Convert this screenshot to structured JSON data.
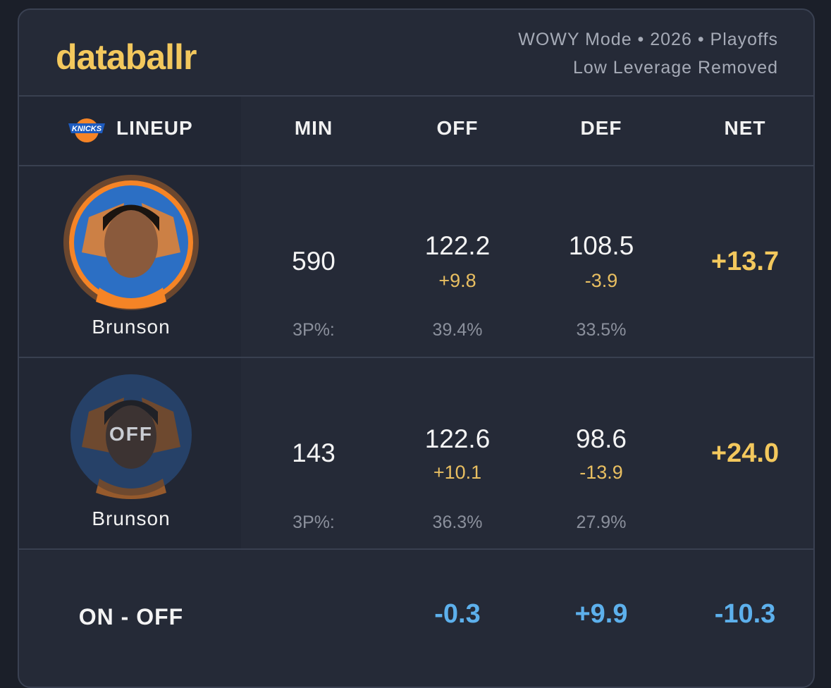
{
  "header": {
    "brand": "databallr",
    "meta": [
      "WOWY Mode • 2026 • Playoffs",
      "Low Leverage Removed"
    ]
  },
  "table": {
    "columns": [
      "LINEUP",
      "MIN",
      "OFF",
      "DEF",
      "NET"
    ],
    "rows": [
      {
        "player": "Brunson",
        "min": "590",
        "off": "122.2",
        "off_diff": "+9.8",
        "def": "108.5",
        "def_diff": "-3.9",
        "net": "+13.7",
        "three_label": "3P%:",
        "off_3p": "39.4%",
        "def_3p": "33.5%"
      },
      {
        "player": "Brunson",
        "badge": "OFF",
        "min": "143",
        "off": "122.6",
        "off_diff": "+10.1",
        "def": "98.6",
        "def_diff": "-13.9",
        "net": "+24.0",
        "three_label": "3P%:",
        "off_3p": "36.3%",
        "def_3p": "27.9%"
      }
    ],
    "footer": {
      "label": "ON - OFF",
      "off": "-0.3",
      "def": "+9.9",
      "net": "-10.3"
    }
  }
}
